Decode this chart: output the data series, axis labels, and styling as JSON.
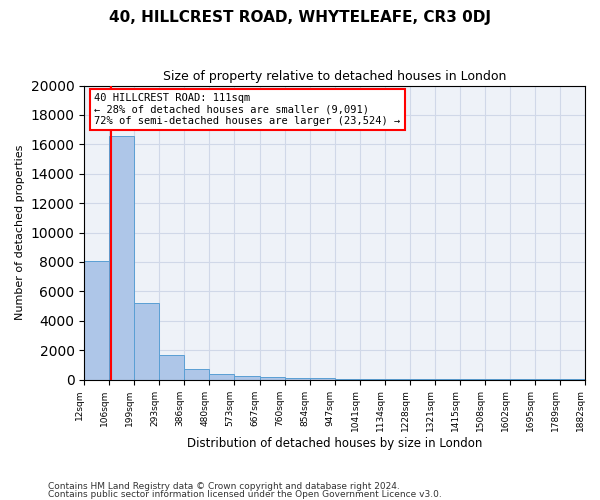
{
  "title": "40, HILLCREST ROAD, WHYTELEAFE, CR3 0DJ",
  "subtitle": "Size of property relative to detached houses in London",
  "xlabel": "Distribution of detached houses by size in London",
  "ylabel": "Number of detached properties",
  "bar_values": [
    8050,
    16600,
    5200,
    1700,
    700,
    400,
    230,
    150,
    100,
    80,
    60,
    50,
    40,
    30,
    25,
    20,
    15,
    12,
    10,
    8
  ],
  "bin_labels": [
    "12sqm",
    "106sqm",
    "199sqm",
    "293sqm",
    "386sqm",
    "480sqm",
    "573sqm",
    "667sqm",
    "760sqm",
    "854sqm",
    "947sqm",
    "1041sqm",
    "1134sqm",
    "1228sqm",
    "1321sqm",
    "1415sqm",
    "1508sqm",
    "1602sqm",
    "1695sqm",
    "1789sqm",
    "1882sqm"
  ],
  "bar_color": "#aec6e8",
  "bar_edge_color": "#5a9fd4",
  "annotation_text": "40 HILLCREST ROAD: 111sqm\n← 28% of detached houses are smaller (9,091)\n72% of semi-detached houses are larger (23,524) →",
  "ylim": [
    0,
    20000
  ],
  "yticks": [
    0,
    2000,
    4000,
    6000,
    8000,
    10000,
    12000,
    14000,
    16000,
    18000,
    20000
  ],
  "grid_color": "#d0d8e8",
  "bg_color": "#eef2f8",
  "footnote1": "Contains HM Land Registry data © Crown copyright and database right 2024.",
  "footnote2": "Contains public sector information licensed under the Open Government Licence v3.0."
}
